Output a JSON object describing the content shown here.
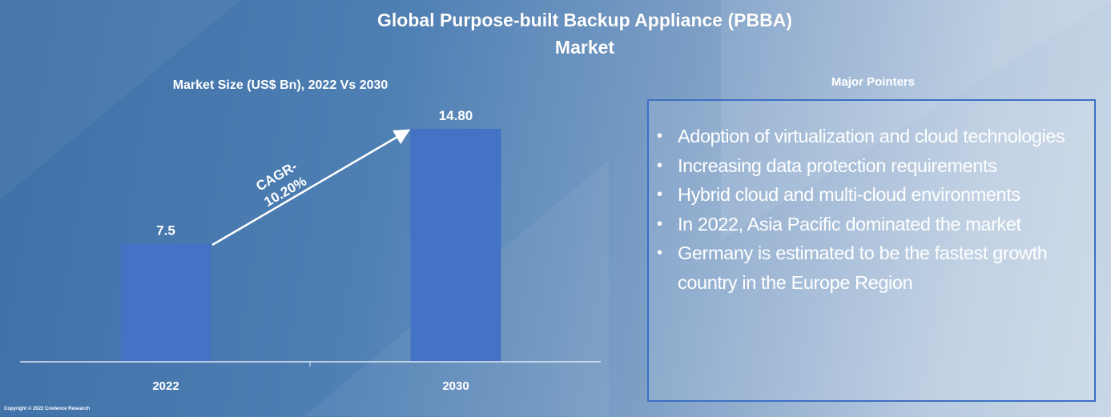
{
  "title": "Global Purpose-built Backup Appliance (PBBA) Market",
  "title_line1": "Global Purpose-built Backup Appliance (PBBA)",
  "title_line2": "Market",
  "colors": {
    "bar": "#4472c4",
    "background_left": "#3e6fa6",
    "background_right": "#c9d7e7",
    "box_border": "#3d6fc4"
  },
  "chart_data": {
    "type": "bar",
    "title": "Market Size (US$ Bn), 2022 Vs 2030",
    "categories": [
      "2022",
      "2030"
    ],
    "values": [
      7.5,
      14.8
    ],
    "data_labels": [
      "7.5",
      "14.80"
    ],
    "ylim": [
      0,
      15
    ],
    "grid": false,
    "annotation": {
      "text_line1": "CAGR-",
      "text_line2": "10.20%",
      "from": "2022",
      "to": "2030"
    }
  },
  "pointers": {
    "title": "Major Pointers",
    "items": [
      "Adoption of virtualization and cloud technologies",
      "Increasing data protection requirements",
      "Hybrid cloud and multi-cloud environments",
      "In 2022, Asia Pacific dominated the market",
      "Germany is estimated to be the fastest growth country in the Europe Region"
    ]
  },
  "copyright": "Copyright © 2022 Credence Research"
}
